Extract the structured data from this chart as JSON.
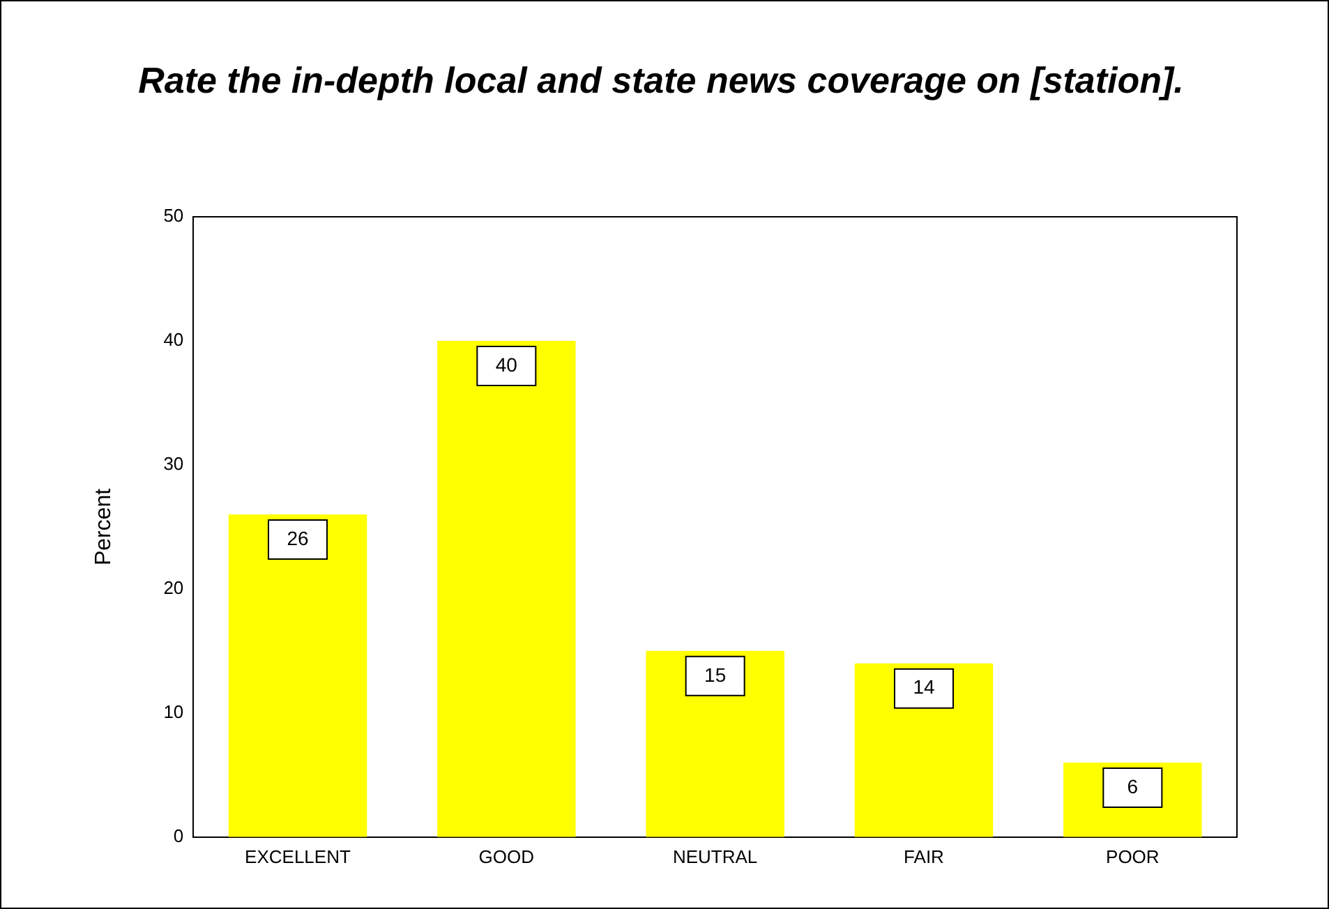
{
  "chart_data": {
    "type": "bar",
    "title": "Rate the in-depth local and state news coverage on [station].",
    "ylabel": "Percent",
    "categories": [
      "EXCELLENT",
      "GOOD",
      "NEUTRAL",
      "FAIR",
      "POOR"
    ],
    "values": [
      26,
      40,
      15,
      14,
      6
    ],
    "color": "#ffff00",
    "ylim": [
      0,
      50
    ],
    "yticks": [
      0,
      10,
      20,
      30,
      40,
      50
    ],
    "grid": false,
    "legend": false,
    "data_labels": true
  }
}
